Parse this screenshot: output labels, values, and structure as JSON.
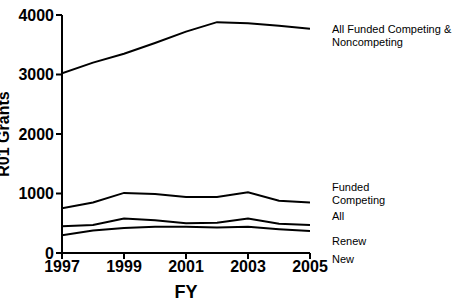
{
  "chart_data": {
    "type": "line",
    "x_label": "FY",
    "y_label": "R01 Grants",
    "x": [
      1997,
      1998,
      1999,
      2000,
      2001,
      2002,
      2003,
      2004,
      2005
    ],
    "xlim": [
      1997,
      2005
    ],
    "xticks": [
      1997,
      1999,
      2001,
      2003,
      2005
    ],
    "ylim": [
      0,
      4000
    ],
    "yticks": [
      0,
      1000,
      2000,
      3000,
      4000
    ],
    "grid": false,
    "annotation": "Funded Competing",
    "series": [
      {
        "name": "All Funded Competing & Noncompeting",
        "color": "#000000",
        "values": [
          3020,
          3200,
          3350,
          3530,
          3720,
          3880,
          3860,
          3820,
          3770
        ]
      },
      {
        "name": "All",
        "color": "#000000",
        "values": [
          750,
          850,
          1010,
          990,
          940,
          940,
          1020,
          880,
          850
        ]
      },
      {
        "name": "Renew",
        "color": "#000000",
        "values": [
          450,
          470,
          580,
          550,
          500,
          510,
          580,
          490,
          470
        ]
      },
      {
        "name": "New",
        "color": "#000000",
        "values": [
          300,
          380,
          420,
          440,
          440,
          430,
          440,
          400,
          370
        ]
      }
    ]
  }
}
